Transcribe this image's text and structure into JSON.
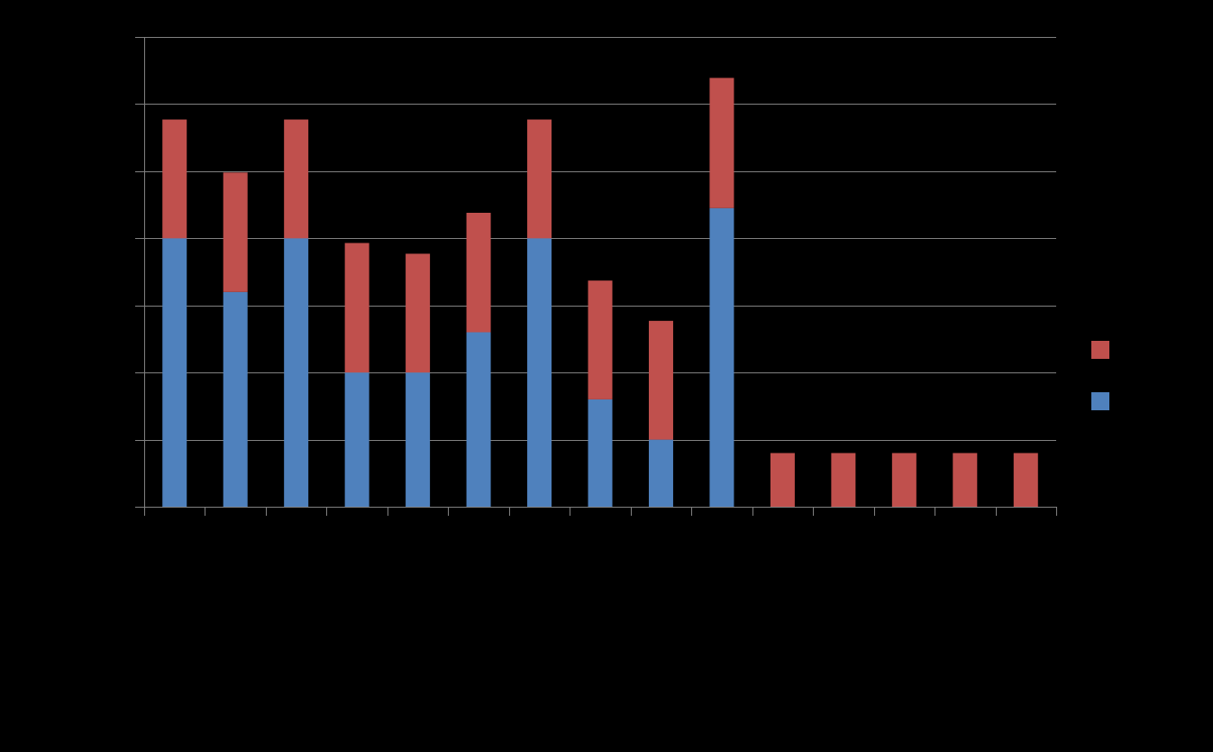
{
  "chart_data": {
    "type": "bar",
    "stacked": true,
    "title": "",
    "xlabel": "",
    "ylabel": "",
    "categories": [
      "",
      "",
      "",
      "",
      "",
      "",
      "",
      "",
      "",
      "",
      "",
      "",
      "",
      "",
      ""
    ],
    "series": [
      {
        "color": "#4F81BD",
        "values": [
          4,
          3.2,
          4,
          2,
          2,
          2.6,
          4,
          1.6,
          1,
          4.45,
          0,
          0,
          0,
          0,
          0
        ]
      },
      {
        "color": "#C0504D",
        "values": [
          1.77,
          1.78,
          1.77,
          1.93,
          1.77,
          1.78,
          1.77,
          1.77,
          1.77,
          1.94,
          0.8,
          0.8,
          0.8,
          0.8,
          0.8
        ]
      }
    ],
    "ylim": [
      0,
      7
    ],
    "y_gridlines": [
      1,
      2,
      3,
      4,
      5,
      6,
      7
    ],
    "grid": true,
    "legend_position": "right",
    "legend_order": [
      "series-2",
      "series-1"
    ],
    "background": "#000000",
    "axis_color": "#808080"
  }
}
